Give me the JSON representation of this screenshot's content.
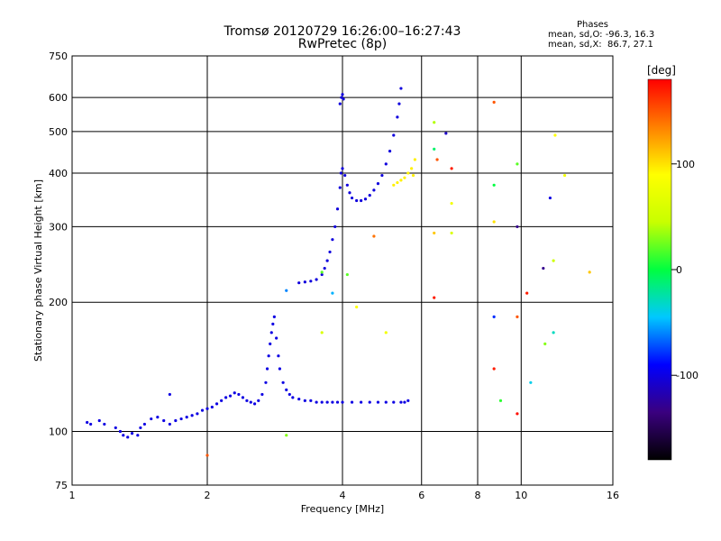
{
  "header": {
    "title": "Tromsø 20120729 16:26:00–16:27:43",
    "subtitle": "RwPretec (8p)",
    "stats_title": "Phases",
    "stats_o": "mean, sd,O: -96.3, 16.3",
    "stats_x": "mean, sd,X:  86.7, 27.1"
  },
  "chart_data": {
    "type": "scatter",
    "xlabel": "Frequency [MHz]",
    "ylabel": "Stationary phase Virtual Height [km]",
    "xscale": "log",
    "yscale": "log",
    "xlim": [
      1,
      16
    ],
    "ylim": [
      75,
      750
    ],
    "x_ticks": [
      1,
      2,
      4,
      6,
      8,
      10,
      16
    ],
    "y_ticks": [
      75,
      100,
      200,
      300,
      400,
      500,
      600,
      750
    ],
    "grid": true,
    "colorbar": {
      "label": "[deg]",
      "range": [
        -180,
        180
      ],
      "ticks": [
        100,
        0,
        -100
      ],
      "colors": [
        "#000000",
        "#3a007f",
        "#0000ff",
        "#00c8ff",
        "#00ff40",
        "#c8ff00",
        "#ffff00",
        "#ff8000",
        "#ff0000"
      ]
    },
    "series": [
      {
        "points": [
          [
            1.08,
            105
          ],
          [
            1.1,
            104
          ],
          [
            1.15,
            106
          ],
          [
            1.18,
            104
          ],
          [
            1.25,
            102
          ],
          [
            1.28,
            100
          ],
          [
            1.3,
            98
          ],
          [
            1.33,
            97
          ],
          [
            1.36,
            99
          ],
          [
            1.4,
            98
          ],
          [
            1.42,
            102
          ],
          [
            1.45,
            104
          ],
          [
            1.5,
            107
          ],
          [
            1.55,
            108
          ],
          [
            1.6,
            106
          ],
          [
            1.65,
            104
          ],
          [
            1.7,
            106
          ],
          [
            1.75,
            107
          ],
          [
            1.8,
            108
          ],
          [
            1.85,
            109
          ],
          [
            1.9,
            110
          ],
          [
            1.95,
            112
          ],
          [
            2.0,
            113
          ],
          [
            2.05,
            114
          ],
          [
            2.1,
            116
          ],
          [
            2.15,
            118
          ],
          [
            2.2,
            120
          ],
          [
            2.25,
            121
          ],
          [
            2.3,
            123
          ],
          [
            2.35,
            122
          ],
          [
            2.4,
            120
          ],
          [
            2.45,
            118
          ],
          [
            2.5,
            117
          ],
          [
            2.55,
            116
          ],
          [
            2.6,
            118
          ],
          [
            2.65,
            122
          ],
          [
            2.7,
            130
          ],
          [
            2.72,
            140
          ],
          [
            2.74,
            150
          ],
          [
            2.76,
            160
          ],
          [
            2.78,
            170
          ],
          [
            2.8,
            178
          ],
          [
            2.82,
            185
          ],
          [
            2.85,
            165
          ],
          [
            2.88,
            150
          ],
          [
            2.9,
            140
          ],
          [
            2.95,
            130
          ],
          [
            3.0,
            125
          ],
          [
            3.05,
            122
          ],
          [
            3.1,
            120
          ],
          [
            3.2,
            119
          ],
          [
            3.3,
            118
          ],
          [
            3.4,
            118
          ],
          [
            3.5,
            117
          ],
          [
            3.6,
            117
          ],
          [
            3.7,
            117
          ],
          [
            3.8,
            117
          ],
          [
            3.9,
            117
          ],
          [
            4.0,
            117
          ],
          [
            4.2,
            117
          ],
          [
            4.4,
            117
          ],
          [
            4.6,
            117
          ],
          [
            4.8,
            117
          ],
          [
            5.0,
            117
          ],
          [
            5.2,
            117
          ],
          [
            5.4,
            117
          ],
          [
            5.5,
            117
          ],
          [
            5.6,
            118
          ]
        ]
      },
      {
        "points": [
          [
            3.2,
            222
          ],
          [
            3.3,
            223
          ],
          [
            3.4,
            224
          ],
          [
            3.5,
            226
          ],
          [
            3.6,
            232
          ],
          [
            3.65,
            240
          ],
          [
            3.7,
            250
          ],
          [
            3.75,
            262
          ],
          [
            3.8,
            280
          ],
          [
            3.85,
            300
          ],
          [
            3.9,
            330
          ],
          [
            3.95,
            370
          ],
          [
            3.97,
            400
          ],
          [
            4.0,
            410
          ],
          [
            4.05,
            395
          ],
          [
            4.1,
            375
          ],
          [
            4.15,
            360
          ],
          [
            4.2,
            350
          ],
          [
            4.3,
            345
          ],
          [
            4.4,
            345
          ],
          [
            4.5,
            348
          ],
          [
            4.6,
            355
          ],
          [
            4.7,
            365
          ],
          [
            4.8,
            378
          ],
          [
            4.9,
            395
          ],
          [
            5.0,
            420
          ],
          [
            5.1,
            450
          ],
          [
            5.2,
            490
          ],
          [
            5.3,
            540
          ],
          [
            5.35,
            580
          ],
          [
            5.4,
            630
          ],
          [
            3.95,
            580
          ],
          [
            3.98,
            600
          ],
          [
            4.0,
            610
          ],
          [
            4.02,
            595
          ]
        ]
      },
      {
        "points": [
          [
            5.2,
            375
          ],
          [
            5.3,
            380
          ],
          [
            5.4,
            385
          ],
          [
            5.5,
            390
          ],
          [
            5.6,
            400
          ],
          [
            5.7,
            410
          ],
          [
            5.8,
            430
          ],
          [
            5.75,
            395
          ]
        ]
      },
      {
        "points": [
          [
            6.4,
            525
          ],
          [
            6.4,
            455
          ],
          [
            6.5,
            430
          ],
          [
            6.8,
            495
          ],
          [
            7.0,
            410
          ],
          [
            7.0,
            340
          ],
          [
            7.0,
            290
          ],
          [
            6.4,
            290
          ],
          [
            6.4,
            205
          ],
          [
            8.7,
            585
          ],
          [
            8.7,
            375
          ],
          [
            8.7,
            308
          ],
          [
            8.7,
            185
          ],
          [
            8.7,
            140
          ],
          [
            9.0,
            118
          ],
          [
            9.8,
            420
          ],
          [
            9.8,
            300
          ],
          [
            9.8,
            185
          ],
          [
            9.8,
            110
          ],
          [
            10.3,
            210
          ],
          [
            10.5,
            130
          ],
          [
            11.2,
            240
          ],
          [
            11.3,
            160
          ],
          [
            11.6,
            350
          ],
          [
            11.8,
            250
          ],
          [
            11.8,
            170
          ],
          [
            11.9,
            490
          ],
          [
            12.5,
            395
          ],
          [
            14.2,
            235
          ],
          [
            3.0,
            213
          ],
          [
            3.0,
            98
          ],
          [
            3.6,
            235
          ],
          [
            3.6,
            170
          ],
          [
            3.8,
            210
          ],
          [
            4.1,
            232
          ],
          [
            4.3,
            195
          ],
          [
            4.7,
            285
          ],
          [
            5.0,
            170
          ],
          [
            2.0,
            88
          ],
          [
            1.65,
            122
          ]
        ]
      }
    ]
  }
}
